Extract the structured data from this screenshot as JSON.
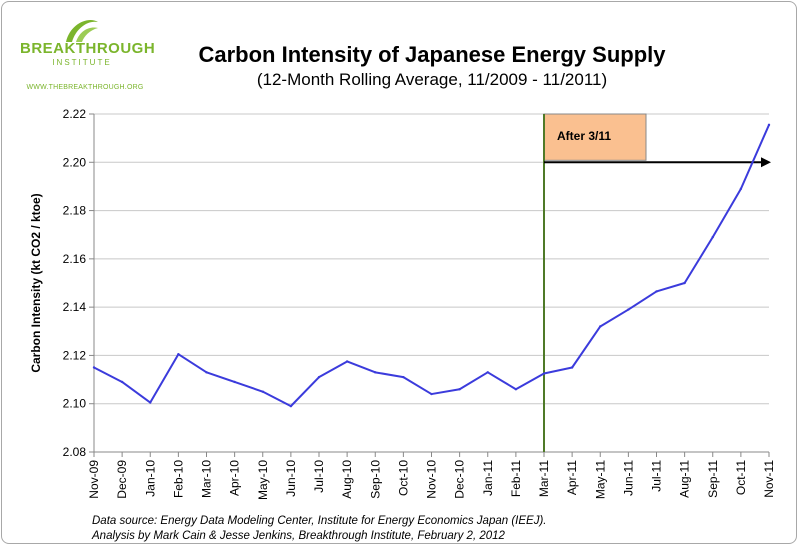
{
  "logo": {
    "name": "BREAKTHROUGH",
    "subtitle": "INSTITUTE",
    "url": "WWW.THEBREAKTHROUGH.ORG",
    "color": "#7bb52c"
  },
  "chart_data": {
    "type": "line",
    "title": "Carbon Intensity of Japanese Energy Supply",
    "subtitle": "(12-Month Rolling Average, 11/2009 - 11/2011)",
    "xlabel": "",
    "ylabel": "Carbon Intensity (kt CO2 / ktoe)",
    "categories": [
      "Nov-09",
      "Dec-09",
      "Jan-10",
      "Feb-10",
      "Mar-10",
      "Apr-10",
      "May-10",
      "Jun-10",
      "Jul-10",
      "Aug-10",
      "Sep-10",
      "Oct-10",
      "Nov-10",
      "Dec-10",
      "Jan-11",
      "Feb-11",
      "Mar-11",
      "Apr-11",
      "May-11",
      "Jun-11",
      "Jul-11",
      "Aug-11",
      "Sep-11",
      "Oct-11",
      "Nov-11"
    ],
    "series": [
      {
        "color": "#3b3bdc",
        "values": [
          2.115,
          2.109,
          2.1005,
          2.1205,
          2.113,
          2.109,
          2.105,
          2.099,
          2.111,
          2.1175,
          2.113,
          2.111,
          2.104,
          2.106,
          2.113,
          2.106,
          2.1125,
          2.115,
          2.132,
          2.139,
          2.1465,
          2.15,
          2.169,
          2.189,
          2.2155
        ]
      }
    ],
    "ylim": [
      2.08,
      2.22
    ],
    "yticks": [
      "2.08",
      "2.10",
      "2.12",
      "2.14",
      "2.16",
      "2.18",
      "2.20",
      "2.22"
    ],
    "grid": "horizontal",
    "annotation": {
      "text": "After 3/11",
      "category": "Mar-11",
      "value": 2.2,
      "box_color": "#fac090",
      "line_color": "#4f7a28"
    }
  },
  "source_note": {
    "line1": "Data source: Energy Data Modeling Center, Institute for Energy Economics Japan (IEEJ).",
    "line2": "Analysis by Mark Cain & Jesse Jenkins, Breakthrough Institute, February 2, 2012"
  }
}
